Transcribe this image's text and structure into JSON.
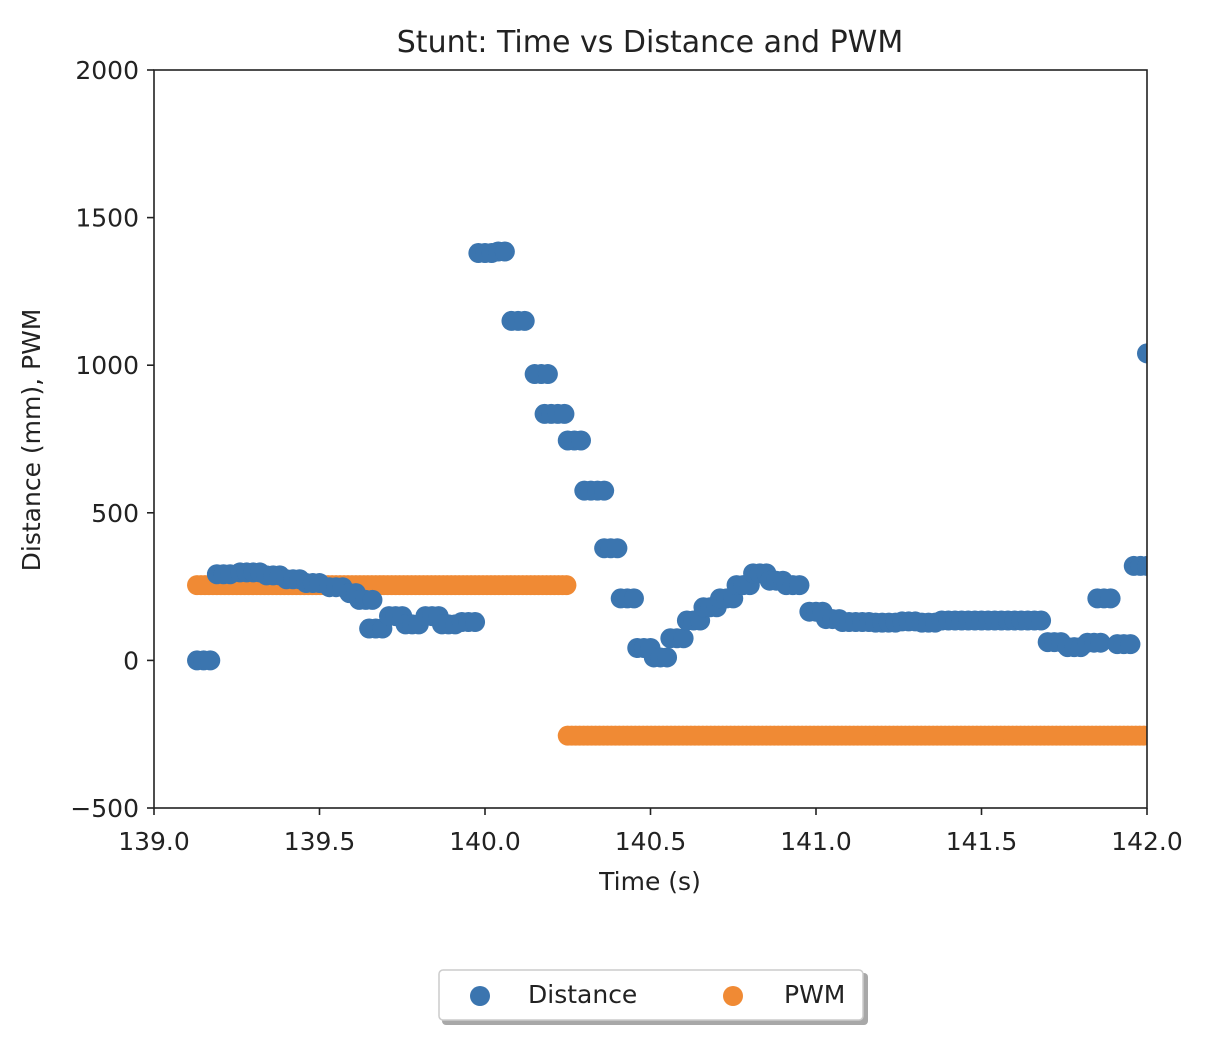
{
  "chart_data": {
    "type": "scatter",
    "title": "Stunt: Time vs Distance and PWM",
    "xlabel": "Time (s)",
    "ylabel": "Distance (mm), PWM",
    "xlim": [
      139.0,
      142.0
    ],
    "ylim": [
      -500,
      2000
    ],
    "xticks": [
      "139.0",
      "139.5",
      "140.0",
      "140.5",
      "141.0",
      "141.5",
      "142.0"
    ],
    "yticks": [
      "2000",
      "1500",
      "1000",
      "500",
      "0",
      "−500"
    ],
    "grid": false,
    "legend": {
      "placement": "bottom-center",
      "columns": 2
    },
    "series": [
      {
        "name": "Distance",
        "color": "#3b75af",
        "points": [
          [
            139.13,
            0
          ],
          [
            139.15,
            0
          ],
          [
            139.17,
            0
          ],
          [
            139.19,
            292
          ],
          [
            139.21,
            292
          ],
          [
            139.23,
            292
          ],
          [
            139.26,
            298
          ],
          [
            139.28,
            298
          ],
          [
            139.3,
            298
          ],
          [
            139.32,
            298
          ],
          [
            139.34,
            288
          ],
          [
            139.36,
            288
          ],
          [
            139.38,
            288
          ],
          [
            139.4,
            275
          ],
          [
            139.42,
            275
          ],
          [
            139.44,
            275
          ],
          [
            139.46,
            262
          ],
          [
            139.48,
            262
          ],
          [
            139.5,
            262
          ],
          [
            139.53,
            248
          ],
          [
            139.55,
            248
          ],
          [
            139.57,
            248
          ],
          [
            139.59,
            228
          ],
          [
            139.61,
            228
          ],
          [
            139.62,
            205
          ],
          [
            139.64,
            205
          ],
          [
            139.66,
            205
          ],
          [
            139.65,
            108
          ],
          [
            139.67,
            108
          ],
          [
            139.69,
            108
          ],
          [
            139.71,
            150
          ],
          [
            139.73,
            150
          ],
          [
            139.75,
            150
          ],
          [
            139.76,
            122
          ],
          [
            139.78,
            122
          ],
          [
            139.8,
            122
          ],
          [
            139.82,
            150
          ],
          [
            139.84,
            150
          ],
          [
            139.86,
            150
          ],
          [
            139.87,
            122
          ],
          [
            139.89,
            122
          ],
          [
            139.91,
            122
          ],
          [
            139.93,
            130
          ],
          [
            139.95,
            130
          ],
          [
            139.97,
            130
          ],
          [
            139.98,
            1380
          ],
          [
            140.0,
            1380
          ],
          [
            140.02,
            1380
          ],
          [
            140.04,
            1385
          ],
          [
            140.06,
            1385
          ],
          [
            140.08,
            1150
          ],
          [
            140.1,
            1150
          ],
          [
            140.12,
            1150
          ],
          [
            140.15,
            970
          ],
          [
            140.17,
            970
          ],
          [
            140.19,
            970
          ],
          [
            140.18,
            835
          ],
          [
            140.2,
            835
          ],
          [
            140.22,
            835
          ],
          [
            140.24,
            835
          ],
          [
            140.25,
            745
          ],
          [
            140.27,
            745
          ],
          [
            140.29,
            745
          ],
          [
            140.3,
            575
          ],
          [
            140.32,
            575
          ],
          [
            140.34,
            575
          ],
          [
            140.36,
            575
          ],
          [
            140.36,
            380
          ],
          [
            140.38,
            380
          ],
          [
            140.4,
            380
          ],
          [
            140.41,
            210
          ],
          [
            140.43,
            210
          ],
          [
            140.45,
            210
          ],
          [
            140.46,
            42
          ],
          [
            140.48,
            42
          ],
          [
            140.5,
            42
          ],
          [
            140.51,
            10
          ],
          [
            140.53,
            10
          ],
          [
            140.55,
            10
          ],
          [
            140.56,
            75
          ],
          [
            140.58,
            75
          ],
          [
            140.6,
            75
          ],
          [
            140.61,
            135
          ],
          [
            140.63,
            135
          ],
          [
            140.65,
            135
          ],
          [
            140.66,
            180
          ],
          [
            140.68,
            180
          ],
          [
            140.7,
            180
          ],
          [
            140.71,
            210
          ],
          [
            140.73,
            210
          ],
          [
            140.75,
            210
          ],
          [
            140.76,
            255
          ],
          [
            140.78,
            255
          ],
          [
            140.8,
            255
          ],
          [
            140.81,
            295
          ],
          [
            140.83,
            295
          ],
          [
            140.85,
            295
          ],
          [
            140.86,
            270
          ],
          [
            140.88,
            270
          ],
          [
            140.9,
            270
          ],
          [
            140.91,
            255
          ],
          [
            140.93,
            255
          ],
          [
            140.95,
            255
          ],
          [
            140.98,
            165
          ],
          [
            141.0,
            165
          ],
          [
            141.02,
            165
          ],
          [
            141.03,
            140
          ],
          [
            141.05,
            140
          ],
          [
            141.07,
            140
          ],
          [
            141.08,
            130
          ],
          [
            141.1,
            130
          ],
          [
            141.12,
            130
          ],
          [
            141.14,
            130
          ],
          [
            141.16,
            130
          ],
          [
            141.18,
            128
          ],
          [
            141.2,
            128
          ],
          [
            141.22,
            128
          ],
          [
            141.24,
            128
          ],
          [
            141.26,
            132
          ],
          [
            141.28,
            132
          ],
          [
            141.3,
            132
          ],
          [
            141.32,
            128
          ],
          [
            141.34,
            128
          ],
          [
            141.36,
            128
          ],
          [
            141.38,
            135
          ],
          [
            141.4,
            135
          ],
          [
            141.42,
            135
          ],
          [
            141.44,
            135
          ],
          [
            141.46,
            135
          ],
          [
            141.48,
            135
          ],
          [
            141.5,
            135
          ],
          [
            141.52,
            135
          ],
          [
            141.54,
            135
          ],
          [
            141.56,
            135
          ],
          [
            141.58,
            135
          ],
          [
            141.6,
            135
          ],
          [
            141.62,
            135
          ],
          [
            141.64,
            135
          ],
          [
            141.66,
            135
          ],
          [
            141.68,
            135
          ],
          [
            141.7,
            62
          ],
          [
            141.72,
            62
          ],
          [
            141.74,
            62
          ],
          [
            141.76,
            45
          ],
          [
            141.78,
            45
          ],
          [
            141.8,
            45
          ],
          [
            141.82,
            60
          ],
          [
            141.84,
            60
          ],
          [
            141.86,
            60
          ],
          [
            141.85,
            210
          ],
          [
            141.87,
            210
          ],
          [
            141.89,
            210
          ],
          [
            141.91,
            55
          ],
          [
            141.93,
            55
          ],
          [
            141.95,
            55
          ],
          [
            141.96,
            320
          ],
          [
            141.98,
            320
          ],
          [
            142.0,
            320
          ],
          [
            142.0,
            1040
          ]
        ]
      },
      {
        "name": "PWM",
        "color": "#f08a34",
        "segments": [
          {
            "x_start": 139.13,
            "x_end": 140.25,
            "y": 255,
            "step": 0.012
          },
          {
            "x_start": 140.25,
            "x_end": 142.0,
            "y": -255,
            "step": 0.012
          }
        ]
      }
    ]
  }
}
